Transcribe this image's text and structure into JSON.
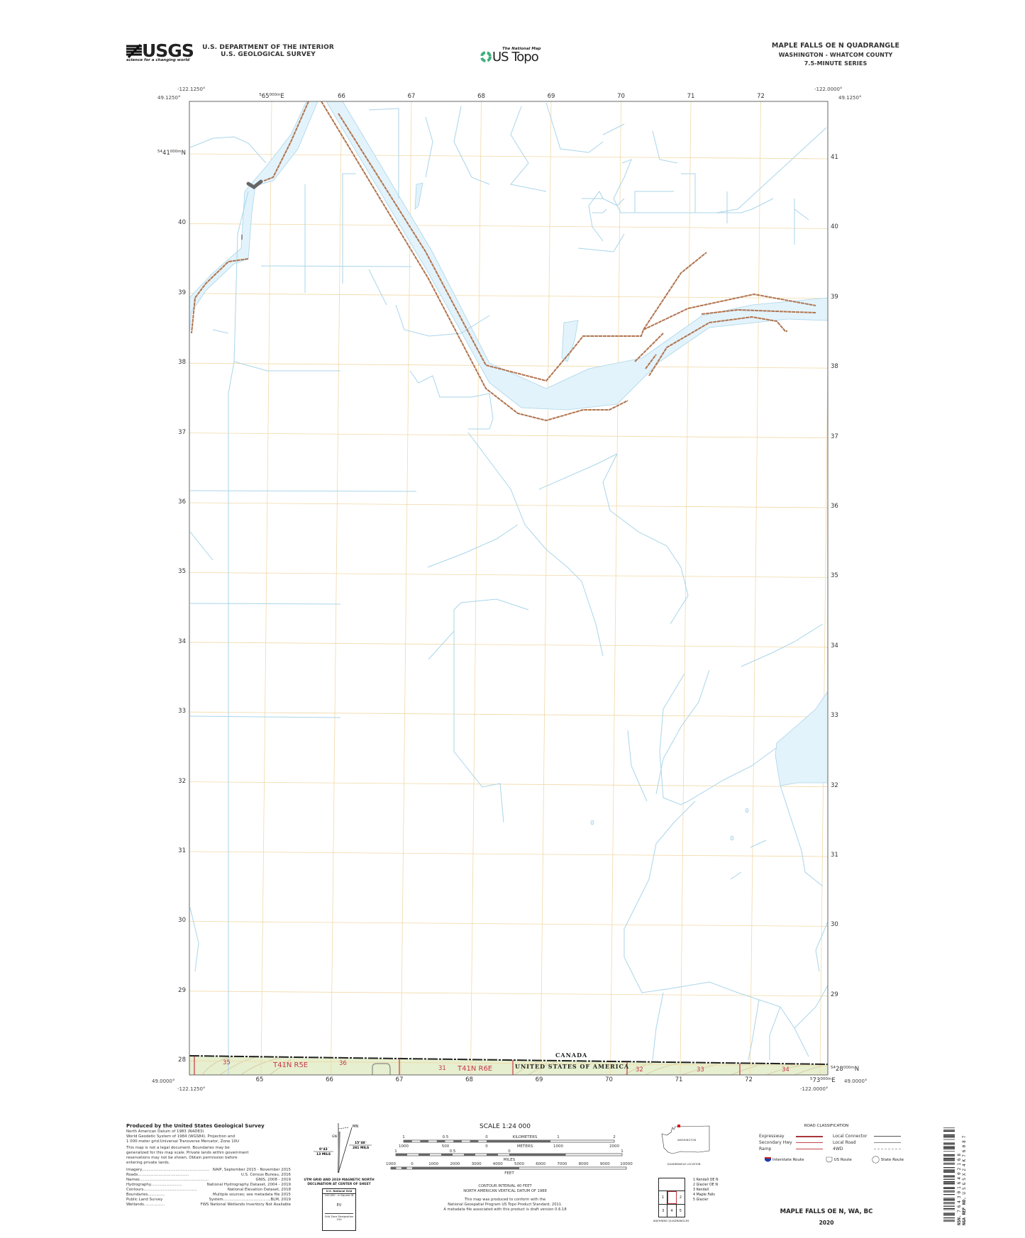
{
  "header": {
    "usgs_logo": "USGS",
    "usgs_tagline": "science for a changing world",
    "dept_line1": "U.S. DEPARTMENT OF THE INTERIOR",
    "dept_line2": "U.S. GEOLOGICAL SURVEY",
    "national_map": "The National Map",
    "us_topo": "US Topo",
    "quad_title": "MAPLE FALLS OE N QUADRANGLE",
    "quad_state_county": "WASHINGTON - WHATCOM COUNTY",
    "quad_series": "7.5-MINUTE SERIES"
  },
  "corners": {
    "nw_lon": "-122.1250°",
    "nw_lat": "49.1250°",
    "ne_lon": "-122.0000°",
    "ne_lat": "49.1250°",
    "sw_lat": "49.0000°",
    "sw_lon": "-122.1250°",
    "se_lon": "-122.0000°",
    "se_lat": "49.0000°"
  },
  "grid": {
    "top_eastings": [
      {
        "pre": "5",
        "main": "65",
        "sup": "000m",
        "unit": "E"
      },
      {
        "main": "66"
      },
      {
        "main": "67"
      },
      {
        "main": "68"
      },
      {
        "main": "69"
      },
      {
        "main": "70"
      },
      {
        "main": "71"
      },
      {
        "main": "72"
      }
    ],
    "bottom_eastings": [
      {
        "main": "65"
      },
      {
        "main": "66"
      },
      {
        "main": "67"
      },
      {
        "main": "68"
      },
      {
        "main": "69"
      },
      {
        "main": "70"
      },
      {
        "main": "71"
      },
      {
        "main": "72"
      },
      {
        "pre": "5",
        "main": "73",
        "sup": "000m",
        "unit": "E"
      }
    ],
    "left_northings": [
      {
        "pre": "54",
        "main": "41",
        "sup": "000m",
        "unit": "N"
      },
      {
        "main": "40"
      },
      {
        "main": "39"
      },
      {
        "main": "38"
      },
      {
        "main": "37"
      },
      {
        "main": "36"
      },
      {
        "main": "35"
      },
      {
        "main": "34"
      },
      {
        "main": "33"
      },
      {
        "main": "32"
      },
      {
        "main": "31"
      },
      {
        "main": "30"
      },
      {
        "main": "29"
      },
      {
        "main": "28"
      }
    ],
    "right_northings": [
      {
        "main": "41"
      },
      {
        "main": "40"
      },
      {
        "main": "39"
      },
      {
        "main": "38"
      },
      {
        "main": "37"
      },
      {
        "main": "36"
      },
      {
        "main": "35"
      },
      {
        "main": "34"
      },
      {
        "main": "33"
      },
      {
        "main": "32"
      },
      {
        "main": "31"
      },
      {
        "main": "30"
      },
      {
        "main": "29"
      },
      {
        "pre": "54",
        "main": "28",
        "sup": "000m",
        "unit": "N"
      }
    ]
  },
  "map_labels": {
    "canada": "CANADA",
    "usa": "UNITED STATES OF AMERICA",
    "township_west": "T41N R5E",
    "township_east": "T41N R6E",
    "sections": [
      "35",
      "36",
      "31",
      "32",
      "33",
      "34"
    ]
  },
  "colors": {
    "water": "#e3f3fb",
    "stream": "#a9d5ea",
    "road": "#b0744f",
    "grid": "#f1d9a8",
    "woodland": "#e6efcf",
    "contour": "#c9a97a",
    "plss": "#c8354a"
  },
  "credits": {
    "title": "Produced by the United States Geological Survey",
    "datum_lines": [
      "North American Datum of 1983 (NAD83)",
      "World Geodetic System of 1984 (WGS84).  Projection and",
      "1 000-meter grid:Universal Transverse Mercator, Zone 10U"
    ],
    "disclaimer_lines": [
      "This map is not a legal document. Boundaries may be",
      "generalized for this map scale. Private lands within government",
      "reservations may not be shown. Obtain permission before",
      "entering private lands."
    ],
    "sources": [
      {
        "label": "Imagery........................................................",
        "value": "NAIP, September 2015 - November 2015"
      },
      {
        "label": "Roads..........................................",
        "value": "U.S.   Census   Bureau,   2016"
      },
      {
        "label": "Names.........................................................",
        "value": "GNIS,  2008  -  2019"
      },
      {
        "label": "Hydrography..........................",
        "value": "National  Hydrography  Dataset,  2004  -  2019"
      },
      {
        "label": "Contours............................................",
        "value": "National   Elevation   Dataset,   2018"
      },
      {
        "label": "Boundaries..............",
        "value": "Multiple  sources;  see  metadata  file  2015"
      },
      {
        "label": "Public   Land   Survey",
        "value": "System.......................................BLM,  2019"
      },
      {
        "label": "Wetlands.................",
        "value": "FWS  National  Wetlands  Inventory  Not  Available"
      }
    ]
  },
  "declination": {
    "gn_label": "GN",
    "mn_label": "MN",
    "grid_angle": "0°43´",
    "grid_mils": "13 MILS",
    "mag_angle": "15°48´",
    "mag_mils": "281 MILS",
    "caption_line1": "UTM GRID AND 2019 MAGNETIC NORTH",
    "caption_line2": "DECLINATION AT CENTER OF SHEET"
  },
  "usng": {
    "title": "U.S. National Grid",
    "subtitle": "100,000 - m Square ID",
    "square_id": "EV",
    "zone_label": "Grid Zone Designation",
    "zone": "10U"
  },
  "scale": {
    "title": "SCALE 1:24 000",
    "km_ticks": [
      "1",
      "0.5",
      "0",
      "1",
      "2"
    ],
    "km_label": "KILOMETERS",
    "m_ticks": [
      "1000",
      "500",
      "0",
      "1000",
      "2000"
    ],
    "m_label": "METERS",
    "mi_ticks": [
      "1",
      "0.5",
      "0",
      "1"
    ],
    "mi_label": "MILES",
    "ft_ticks": [
      "1000",
      "0",
      "1000",
      "2000",
      "3000",
      "4000",
      "5000",
      "6000",
      "7000",
      "8000",
      "9000",
      "10000"
    ],
    "ft_label": "FEET",
    "contour_interval": "CONTOUR INTERVAL 40 FEET",
    "vertical_datum": "NORTH AMERICAN VERTICAL DATUM OF 1988",
    "standard_lines": [
      "This map was produced to conform with the",
      "National Geospatial Program US Topo Product Standard, 2011.",
      "A metadata file associated with this product is draft version 0.6.18"
    ]
  },
  "location": {
    "state_label": "WASHINGTON",
    "caption": "QUADRANGLE LOCATION"
  },
  "adjoining": {
    "cells": [
      "1",
      "2",
      "3",
      "4",
      "5"
    ],
    "names": [
      "1 Kendall OE N",
      "2 Glacier OE N",
      "3 Kendall",
      "4 Maple Falls",
      "5 Glacier"
    ],
    "caption": "ADJOINING QUADRANGLES"
  },
  "roads_legend": {
    "title": "ROAD CLASSIFICATION",
    "left": [
      {
        "label": "Expressway",
        "color": "#a8353a"
      },
      {
        "label": "Secondary Hwy",
        "color": "#c0474a"
      },
      {
        "label": "Ramp",
        "color": "#c0474a"
      }
    ],
    "right": [
      {
        "label": "Local Connector",
        "color": "#555555"
      },
      {
        "label": "Local Road",
        "color": "#888888"
      },
      {
        "label": "4WD",
        "color": "#aaaaaa"
      }
    ],
    "routes": [
      "Interstate Route",
      "US Route",
      "State Route"
    ]
  },
  "footer": {
    "map_name": "MAPLE FALLS OE N,  WA, BC",
    "year": "2020"
  },
  "barcode": {
    "isbn_label": "NSN.",
    "isbn": "7643016402168",
    "ref_label": "NGA REF NO.",
    "ref": "USGSX24K76087"
  }
}
